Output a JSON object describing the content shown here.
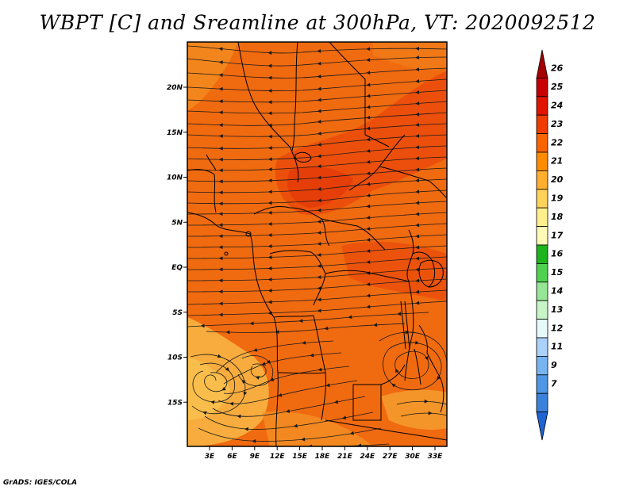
{
  "title": "WBPT [C] and Sreamline at 300hPa, VT: 2020092512",
  "credit": "GrADS: IGES/COLA",
  "map": {
    "lat_labels": [
      "20N",
      "15N",
      "10N",
      "5N",
      "EQ",
      "5S",
      "10S",
      "15S"
    ],
    "lon_labels": [
      "3E",
      "6E",
      "9E",
      "12E",
      "15E",
      "18E",
      "21E",
      "24E",
      "27E",
      "30E",
      "33E"
    ],
    "lat_values": [
      20,
      15,
      10,
      5,
      0,
      -5,
      -10,
      -15
    ],
    "lon_values": [
      3,
      6,
      9,
      12,
      15,
      18,
      21,
      24,
      27,
      30,
      33
    ],
    "lon_range": [
      0,
      34
    ],
    "lat_range": [
      -20,
      25
    ],
    "variable": "wet-bulb potential temperature",
    "units": "C",
    "level": "300hPa",
    "valid_time": "2020092512"
  },
  "colorbar": {
    "labels": [
      "26",
      "25",
      "24",
      "23",
      "22",
      "21",
      "20",
      "19",
      "18",
      "17",
      "16",
      "15",
      "14",
      "13",
      "12",
      "11",
      "9",
      "7"
    ],
    "colors": [
      "#a50000",
      "#c80000",
      "#e11400",
      "#f03c00",
      "#fa6400",
      "#ff8c00",
      "#ffaf2d",
      "#ffd25a",
      "#fff08c",
      "#fffab4",
      "#1eb41e",
      "#50d250",
      "#96e696",
      "#c8f5c8",
      "#e6fafa",
      "#aad2fa",
      "#78b4f0",
      "#5096e6",
      "#3c82dc",
      "#1e64d2"
    ]
  }
}
